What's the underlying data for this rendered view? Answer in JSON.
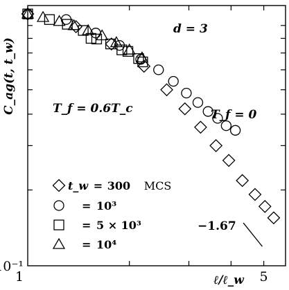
{
  "chart_data": {
    "type": "scatter",
    "x_scale": "log",
    "y_scale": "log",
    "xlim": [
      1,
      5.8
    ],
    "ylim": [
      0.1,
      1.08
    ],
    "ylabel": "C_ag(t, t_w)",
    "xlabel": "ℓ/ℓ_w",
    "x_tick_labels": [
      {
        "value": 1,
        "label": "1"
      },
      {
        "value": 5,
        "label": "5"
      }
    ],
    "y_tick_labels": [
      {
        "value": 0.1,
        "label": "10⁻¹"
      }
    ],
    "y_minor_ticks": [
      0.2,
      0.3,
      0.4,
      0.5,
      0.6,
      0.7,
      0.8,
      0.9
    ],
    "annotations": {
      "dimension": "d = 3",
      "tf_finite": "T_f = 0.6T_c",
      "tf_zero": "T_f = 0",
      "slope": "−1.67"
    },
    "reference_line": {
      "slope": -1.67,
      "x": [
        4.35,
        4.95
      ],
      "label": "−1.67"
    },
    "legend_position": "bottom-left",
    "legend": [
      {
        "symbol": "diamond",
        "label_tw": "t_w",
        "eq": "=",
        "value": "300",
        "unit": "MCS"
      },
      {
        "symbol": "circle",
        "eq": "=",
        "value": "10³"
      },
      {
        "symbol": "square",
        "eq": "=",
        "value": "5 × 10³"
      },
      {
        "symbol": "triangle",
        "eq": "=",
        "value": "10⁴"
      }
    ],
    "series": [
      {
        "symbol": "diamond",
        "group": "T_f = 0",
        "x": [
          1.0,
          1.39,
          1.77,
          2.21,
          2.58,
          2.92,
          3.25,
          3.61,
          3.94,
          4.32,
          4.71,
          5.04,
          5.35
        ],
        "y": [
          1.0,
          0.89,
          0.76,
          0.62,
          0.5,
          0.42,
          0.355,
          0.3,
          0.262,
          0.218,
          0.192,
          0.172,
          0.155
        ]
      },
      {
        "symbol": "circle",
        "group": "T_f = 0",
        "x": [
          1.0,
          1.3,
          1.59,
          1.87,
          2.16,
          2.44,
          2.7,
          2.95,
          3.19,
          3.42,
          3.65,
          3.87,
          4.12
        ],
        "y": [
          1.0,
          0.95,
          0.84,
          0.75,
          0.66,
          0.6,
          0.54,
          0.485,
          0.445,
          0.41,
          0.385,
          0.36,
          0.345
        ]
      },
      {
        "symbol": "square",
        "group": "T_f = 0.6T_c",
        "x": [
          1.0,
          1.16,
          1.31,
          1.46,
          1.54,
          1.6,
          1.76,
          1.9,
          1.98,
          2.13,
          2.19
        ],
        "y": [
          1.0,
          0.95,
          0.91,
          0.86,
          0.8,
          0.795,
          0.76,
          0.72,
          0.71,
          0.665,
          0.645
        ]
      },
      {
        "symbol": "triangle",
        "group": "T_f = 0.6T_c",
        "x": [
          1.0,
          1.11,
          1.24,
          1.37,
          1.51,
          1.66,
          1.83,
          2.0,
          2.18
        ],
        "y": [
          1.0,
          0.97,
          0.935,
          0.9,
          0.86,
          0.82,
          0.77,
          0.72,
          0.67
        ]
      }
    ]
  }
}
